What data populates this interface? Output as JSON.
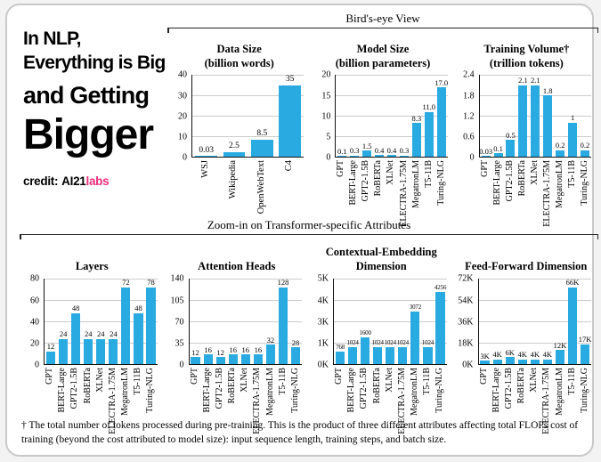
{
  "page": {
    "headline_lines": [
      "In NLP,",
      "Everything is Big",
      "and Getting",
      "Bigger"
    ],
    "credit_label": "credit:",
    "credit_brand": "AI21",
    "credit_brand_suffix": "labs",
    "footnote": "† The total number of tokens processed during pre-training. This is the product of three different attributes affecting total FLOPs cost of training (beyond the cost attributed to model size): input sequence length, training steps, and batch size."
  },
  "sections": {
    "birdseye": "Bird's-eye View",
    "zoomin": "Zoom-in on Transformer-specific Attributes"
  },
  "colors": {
    "bar": "#29ABE2",
    "brand_pink": "#ED2E7C",
    "gridline": "#cccccc",
    "axis": "#111111"
  },
  "chart_data": [
    {
      "type": "bar",
      "section": "birdseye",
      "title": "Data Size",
      "title_lines": [
        "Data Size",
        "(billion words)"
      ],
      "categories": [
        "WSJ",
        "Wikipedia",
        "OpenWebText",
        "C4"
      ],
      "values": [
        0.03,
        2.5,
        8.5,
        35
      ],
      "value_labels": [
        "0.03",
        "2.5",
        "8.5",
        "35"
      ],
      "yticks_top_to_bottom": [
        "40",
        "30",
        "20",
        "10",
        "0"
      ],
      "ylim": [
        0,
        40
      ],
      "ymax": 40,
      "grid": true
    },
    {
      "type": "bar",
      "section": "birdseye",
      "title": "Model Size",
      "title_lines": [
        "Model Size",
        "(billion parameters)"
      ],
      "categories": [
        "GPT",
        "BERT-Large",
        "GPT2-1.5B",
        "RoBERTa",
        "XLNet",
        "ELECTRA-1.75M",
        "MegatronLM",
        "T5-11B",
        "Turing-NLG"
      ],
      "values": [
        0.1,
        0.3,
        1.5,
        0.4,
        0.4,
        0.3,
        8.3,
        11.0,
        17.0
      ],
      "value_labels": [
        "0.1",
        "0.3",
        "1.5",
        "0.4",
        "0.4",
        "0.3",
        "8.3",
        "11.0",
        "17.0"
      ],
      "yticks_top_to_bottom": [
        "20",
        "15",
        "10",
        "5",
        "0"
      ],
      "ylim": [
        0,
        20
      ],
      "ymax": 20,
      "grid": true
    },
    {
      "type": "bar",
      "section": "birdseye",
      "title": "Training Volume†",
      "title_lines": [
        "Training Volume†",
        "(trillion tokens)"
      ],
      "categories": [
        "GPT",
        "BERT-Large",
        "GPT2-1.5B",
        "RoBERTa",
        "XLNet",
        "ELECTRA-1.75M",
        "MegatronLM",
        "T5-11B",
        "Turing-NLG"
      ],
      "values": [
        0.03,
        0.1,
        0.5,
        2.1,
        2.1,
        1.8,
        0.2,
        1,
        0.2
      ],
      "value_labels": [
        "0.03",
        "0.1",
        "0.5",
        "2.1",
        "2.1",
        "1.8",
        "0.2",
        "1",
        "0.2"
      ],
      "yticks_top_to_bottom": [
        "2.4",
        "1.8",
        "1.2",
        "0.6",
        "0"
      ],
      "ylim": [
        0,
        2.4
      ],
      "ymax": 2.4,
      "grid": true
    },
    {
      "type": "bar",
      "section": "zoomin",
      "title": "Layers",
      "title_lines": [
        "Layers"
      ],
      "categories": [
        "GPT",
        "BERT-Large",
        "GPT2-1.5B",
        "RoBERTa",
        "XLNet",
        "ELECTRA-1.75M",
        "MegatronLM",
        "T5-11B",
        "Turing-NLG"
      ],
      "values": [
        12,
        24,
        48,
        24,
        24,
        24,
        72,
        48,
        78
      ],
      "value_labels": [
        "12",
        "24",
        "48",
        "24",
        "24",
        "24",
        "72",
        "48",
        "78"
      ],
      "yticks_top_to_bottom": [
        "80",
        "60",
        "40",
        "20",
        "0"
      ],
      "ylim": [
        0,
        80
      ],
      "ymax": 80,
      "grid": true
    },
    {
      "type": "bar",
      "section": "zoomin",
      "title": "Attention Heads",
      "title_lines": [
        "Attention Heads"
      ],
      "categories": [
        "GPT",
        "BERT-Large",
        "GPT2-1.5B",
        "RoBERTa",
        "XLNet",
        "ELECTRA-1.75M",
        "MegatronLM",
        "T5-11B",
        "Turing-NLG"
      ],
      "values": [
        12,
        16,
        12,
        16,
        16,
        16,
        32,
        128,
        28
      ],
      "value_labels": [
        "12",
        "16",
        "12",
        "16",
        "16",
        "16",
        "32",
        "128",
        "28"
      ],
      "yticks_top_to_bottom": [
        "140",
        "105",
        "70",
        "35",
        "0"
      ],
      "ylim": [
        0,
        140
      ],
      "ymax": 140,
      "grid": true
    },
    {
      "type": "bar",
      "section": "zoomin",
      "title": "Contextual-Embedding Dimension",
      "title_lines": [
        "Contextual-Embedding",
        "Dimension"
      ],
      "categories": [
        "GPT",
        "BERT-Large",
        "GPT2-1.5B",
        "RoBERTa",
        "XLNet",
        "ELECTRA-1.75M",
        "MegatronLM",
        "T5-11B",
        "Turing-NLG"
      ],
      "values": [
        768,
        1024,
        1600,
        1024,
        1024,
        1024,
        3072,
        1024,
        4256
      ],
      "value_labels": [
        "768",
        "1024",
        "1600",
        "1024",
        "1024",
        "1024",
        "3072",
        "1024",
        "4256"
      ],
      "yticks_top_to_bottom": [
        "5K",
        "4K",
        "3K",
        "1K",
        "0K"
      ],
      "ylim": [
        0,
        5000
      ],
      "ymax": 5000,
      "grid": true
    },
    {
      "type": "bar",
      "section": "zoomin",
      "title": "Feed-Forward Dimension",
      "title_lines": [
        "Feed-Forward Dimension"
      ],
      "categories": [
        "GPT",
        "BERT-Large",
        "GPT2-1.5B",
        "RoBERTa",
        "XLNet",
        "ELECTRA-1.75M",
        "MegatronLM",
        "T5-11B",
        "Turing-NLG"
      ],
      "values": [
        3,
        4,
        6,
        4,
        4,
        4,
        12,
        66,
        17
      ],
      "value_labels": [
        "3K",
        "4K",
        "6K",
        "4K",
        "4K",
        "4K",
        "12K",
        "66K",
        "17K"
      ],
      "yticks_top_to_bottom": [
        "72K",
        "54K",
        "36K",
        "18K",
        "0K"
      ],
      "ylim": [
        0,
        72
      ],
      "ymax": 72,
      "grid": true
    }
  ]
}
